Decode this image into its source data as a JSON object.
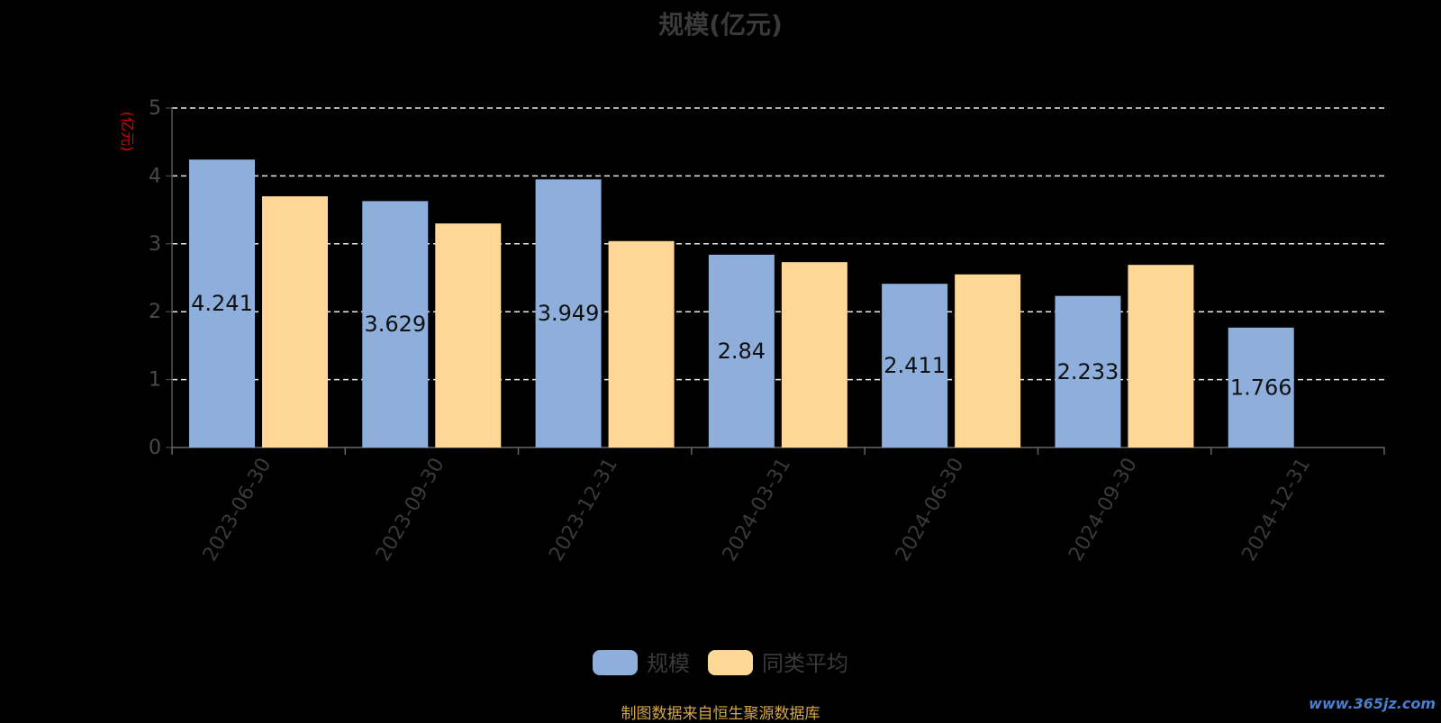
{
  "chart_data": {
    "type": "bar",
    "title": "规模(亿元)",
    "ylabel": "(亿元)",
    "xlabel": "",
    "categories": [
      "2023-06-30",
      "2023-09-30",
      "2023-12-31",
      "2024-03-31",
      "2024-06-30",
      "2024-09-30",
      "2024-12-31"
    ],
    "series": [
      {
        "name": "规模",
        "color": "#8eaedb",
        "values": [
          4.241,
          3.629,
          3.949,
          2.84,
          2.411,
          2.233,
          1.766
        ]
      },
      {
        "name": "同类平均",
        "color": "#ffd796",
        "values": [
          3.7,
          3.3,
          3.04,
          2.73,
          2.55,
          2.69,
          null
        ]
      }
    ],
    "data_labels": [
      "4.241",
      "3.629",
      "3.949",
      "2.84",
      "2.411",
      "2.233",
      "1.766"
    ],
    "ylim": [
      0,
      5
    ],
    "yticks": [
      0,
      1,
      2,
      3,
      4,
      5
    ],
    "grid": true,
    "legend_position": "bottom-center"
  },
  "footer": {
    "source": "制图数据来自恒生聚源数据库",
    "watermark": "www.365jz.com"
  }
}
